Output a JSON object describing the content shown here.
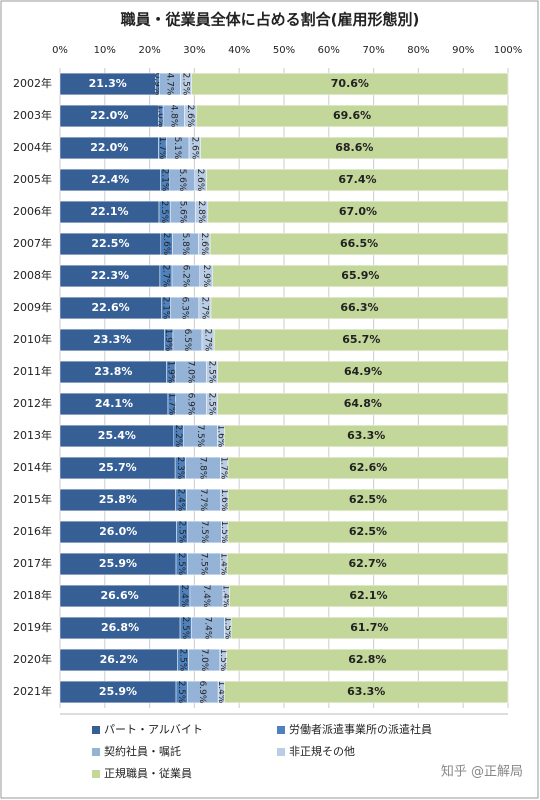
{
  "chart_data": {
    "type": "stacked-bar-horizontal",
    "title": "職員・従業員全体に占める割合(雇用形態別)",
    "categories": [
      "2002年",
      "2003年",
      "2004年",
      "2005年",
      "2006年",
      "2007年",
      "2008年",
      "2009年",
      "2010年",
      "2011年",
      "2012年",
      "2013年",
      "2014年",
      "2015年",
      "2016年",
      "2017年",
      "2018年",
      "2019年",
      "2020年",
      "2021年"
    ],
    "series": [
      {
        "name": "パート・アルバイト",
        "color": "#365f96",
        "values": [
          21.3,
          22.0,
          22.0,
          22.4,
          22.1,
          22.5,
          22.3,
          22.6,
          23.3,
          23.8,
          24.1,
          25.4,
          25.7,
          25.8,
          26.0,
          25.9,
          26.6,
          26.8,
          26.2,
          25.9
        ],
        "value_labels": [
          "21.3%",
          "22.0%",
          "22.0%",
          "22.4%",
          "22.1%",
          "22.5%",
          "22.3%",
          "22.6%",
          "23.3%",
          "23.8%",
          "24.1%",
          "25.4%",
          "25.7%",
          "25.8%",
          "26.0%",
          "25.9%",
          "26.6%",
          "26.8%",
          "26.2%",
          "25.9%"
        ]
      },
      {
        "name": "労働者派遣事業所の派遣社員",
        "color": "#4f81bd",
        "values": [
          0.9,
          1.0,
          1.7,
          2.1,
          2.5,
          2.6,
          2.7,
          2.1,
          1.9,
          1.9,
          1.7,
          2.2,
          2.3,
          2.4,
          2.5,
          2.5,
          2.4,
          2.5,
          2.5,
          2.5
        ],
        "value_labels": [
          "0.9%",
          "1.0%",
          "1.7%",
          "2.1%",
          "2.5%",
          "2.6%",
          "2.7%",
          "2.1%",
          "1.9%",
          "1.9%",
          "1.7%",
          "2.2%",
          "2.3%",
          "2.4%",
          "2.5%",
          "2.5%",
          "2.4%",
          "2.5%",
          "2.5%",
          "2.5%"
        ]
      },
      {
        "name": "契約社員・嘱託",
        "color": "#95b3d7",
        "values": [
          4.7,
          4.8,
          5.1,
          5.6,
          5.6,
          5.8,
          6.2,
          6.3,
          6.5,
          7.0,
          6.9,
          7.5,
          7.8,
          7.7,
          7.5,
          7.5,
          7.4,
          7.4,
          7.0,
          6.9
        ],
        "value_labels": [
          "4.7%",
          "4.8%",
          "5.1%",
          "5.6%",
          "5.6%",
          "5.8%",
          "6.2%",
          "6.3%",
          "6.5%",
          "7.0%",
          "6.9%",
          "7.5%",
          "7.8%",
          "7.7%",
          "7.5%",
          "7.5%",
          "7.4%",
          "7.4%",
          "7.0%",
          "6.9%"
        ]
      },
      {
        "name": "非正規その他",
        "color": "#b9cde5",
        "values": [
          2.5,
          2.6,
          2.6,
          2.6,
          2.8,
          2.6,
          2.9,
          2.7,
          2.7,
          2.5,
          2.5,
          1.6,
          1.7,
          1.6,
          1.5,
          1.4,
          1.4,
          1.5,
          1.5,
          1.4
        ],
        "value_labels": [
          "2.5%",
          "2.6%",
          "2.6%",
          "2.6%",
          "2.8%",
          "2.6%",
          "2.9%",
          "2.7%",
          "2.7%",
          "2.5%",
          "2.5%",
          "1.6%",
          "1.7%",
          "1.6%",
          "1.5%",
          "1.4%",
          "1.4%",
          "1.5%",
          "1.5%",
          "1.4%"
        ]
      },
      {
        "name": "正規職員・従業員",
        "color": "#c4d79b",
        "values": [
          70.6,
          69.6,
          68.6,
          67.4,
          67.0,
          66.5,
          65.9,
          66.3,
          65.7,
          64.9,
          64.8,
          63.3,
          62.6,
          62.5,
          62.5,
          62.7,
          62.1,
          61.7,
          62.8,
          63.3
        ],
        "value_labels": [
          "70.6%",
          "69.6%",
          "68.6%",
          "67.4%",
          "67.0%",
          "66.5%",
          "65.9%",
          "66.3%",
          "65.7%",
          "64.9%",
          "64.8%",
          "63.3%",
          "62.6%",
          "62.5%",
          "62.5%",
          "62.7%",
          "62.1%",
          "61.7%",
          "62.8%",
          "63.3%"
        ]
      }
    ],
    "xlim": [
      0,
      100
    ],
    "xticks": [
      {
        "value": 0,
        "label": "0%"
      },
      {
        "value": 10,
        "label": "10%"
      },
      {
        "value": 20,
        "label": "20%"
      },
      {
        "value": 30,
        "label": "30%"
      },
      {
        "value": 40,
        "label": "40%"
      },
      {
        "value": 50,
        "label": "50%"
      },
      {
        "value": 60,
        "label": "60%"
      },
      {
        "value": 70,
        "label": "70%"
      },
      {
        "value": 80,
        "label": "80%"
      },
      {
        "value": 90,
        "label": "90%"
      },
      {
        "value": 100,
        "label": "100%"
      }
    ],
    "grid": true,
    "legend": "bottom",
    "watermark": "知乎 @正解局"
  }
}
